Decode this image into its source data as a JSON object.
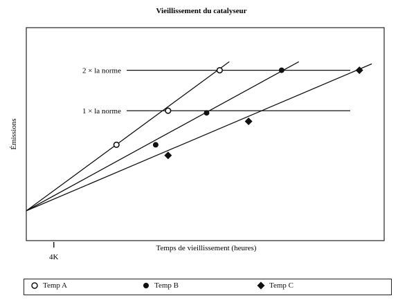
{
  "chart_data": {
    "type": "line",
    "title": "Vieillissement du catalyseur",
    "xlabel": "Temps de vieillissement (heures)",
    "ylabel": "Émissions",
    "x_ticks": [
      {
        "x": 4,
        "label": "4K"
      }
    ],
    "xlim": [
      0,
      52
    ],
    "ylim": [
      0,
      100
    ],
    "reference_lines": [
      {
        "label": "2 × la norme",
        "y": 80
      },
      {
        "label": "1 × la norme",
        "y": 61
      }
    ],
    "series": [
      {
        "name": "Temp A",
        "marker": "open-circle",
        "points": [
          {
            "x": 13.1,
            "y": 45
          },
          {
            "x": 20.6,
            "y": 61
          },
          {
            "x": 28.1,
            "y": 80
          }
        ],
        "line_end": {
          "x": 29.5,
          "y": 84
        }
      },
      {
        "name": "Temp B",
        "marker": "filled-circle",
        "points": [
          {
            "x": 18.8,
            "y": 45
          },
          {
            "x": 26.2,
            "y": 60
          },
          {
            "x": 37.1,
            "y": 80
          }
        ],
        "line_end": {
          "x": 39.6,
          "y": 84
        }
      },
      {
        "name": "Temp C",
        "marker": "diamond",
        "points": [
          {
            "x": 20.6,
            "y": 40
          },
          {
            "x": 32.3,
            "y": 56
          },
          {
            "x": 48.4,
            "y": 80
          }
        ],
        "line_end": {
          "x": 50.2,
          "y": 83
        }
      }
    ],
    "origin": {
      "x": 0,
      "y": 14
    },
    "grid": false,
    "legend": "bottom"
  }
}
